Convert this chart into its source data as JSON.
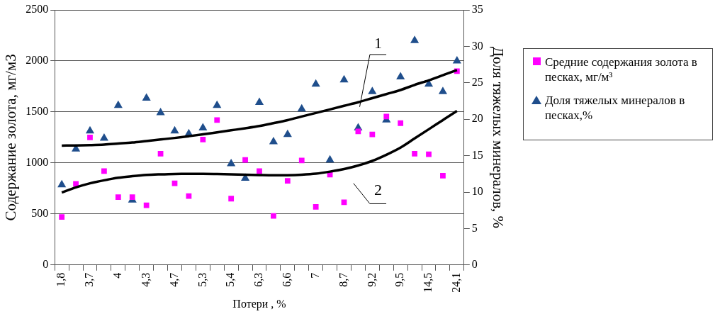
{
  "chart_data": {
    "type": "scatter",
    "xlabel": "Потери , %",
    "ylabel": "Содержание золота, мг/м3",
    "y2label": "Доля тяжелых минералов, %",
    "categories": [
      "1,8",
      null,
      "3,7",
      null,
      "4",
      null,
      "4,3",
      null,
      "4,7",
      null,
      "5,3",
      null,
      "5,4",
      null,
      "6,3",
      null,
      "6,6",
      null,
      "7",
      null,
      "8,7",
      null,
      "9,2",
      null,
      "9,5",
      null,
      "14,5",
      null,
      "24,1"
    ],
    "series": [
      {
        "name": "Средние содержания золота в песках, мг/м³",
        "color": "#ff00ff",
        "marker": "square",
        "values": [
          470,
          795,
          1250,
          920,
          665,
          665,
          585,
          1090,
          800,
          675,
          1230,
          1420,
          650,
          1030,
          920,
          480,
          825,
          1025,
          570,
          885,
          615,
          1310,
          1280,
          1455,
          1390,
          1090,
          1085,
          875,
          1900
        ]
      },
      {
        "name": "Доля тяжелых минералов в песках,%",
        "color": "#1f4e8c",
        "marker": "triangle",
        "axis": "y2",
        "values": [
          11,
          15.9,
          18.4,
          17.4,
          21.9,
          8.9,
          22.9,
          20.9,
          18.4,
          18,
          18.8,
          21.9,
          13.9,
          11.9,
          22.3,
          16.9,
          17.9,
          21.4,
          24.8,
          14.4,
          25.4,
          18.8,
          23.8,
          19.9,
          25.8,
          30.8,
          24.8,
          23.8,
          28
        ]
      },
      {
        "type": "line",
        "color": "#000000",
        "marker": "none",
        "values": [
          1170,
          1172,
          1175,
          1180,
          1190,
          1200,
          1215,
          1230,
          1245,
          1262,
          1280,
          1300,
          1320,
          1340,
          1362,
          1390,
          1420,
          1455,
          1490,
          1525,
          1560,
          1595,
          1635,
          1675,
          1715,
          1765,
          1810,
          1860,
          1910
        ]
      },
      {
        "type": "line",
        "color": "#000000",
        "marker": "none",
        "values": [
          710,
          760,
          800,
          830,
          855,
          870,
          882,
          888,
          892,
          893,
          893,
          891,
          888,
          884,
          881,
          879,
          880,
          885,
          895,
          915,
          940,
          975,
          1020,
          1080,
          1150,
          1240,
          1330,
          1420,
          1510
        ]
      }
    ],
    "ylim": [
      0,
      2500
    ],
    "yticks": [
      0,
      500,
      1000,
      1500,
      2000,
      2500
    ],
    "y2lim": [
      0,
      35
    ],
    "y2ticks": [
      0,
      5,
      10,
      15,
      20,
      25,
      30,
      35
    ],
    "grid": "y",
    "legend": "right",
    "annotations": [
      "1",
      "2"
    ]
  }
}
